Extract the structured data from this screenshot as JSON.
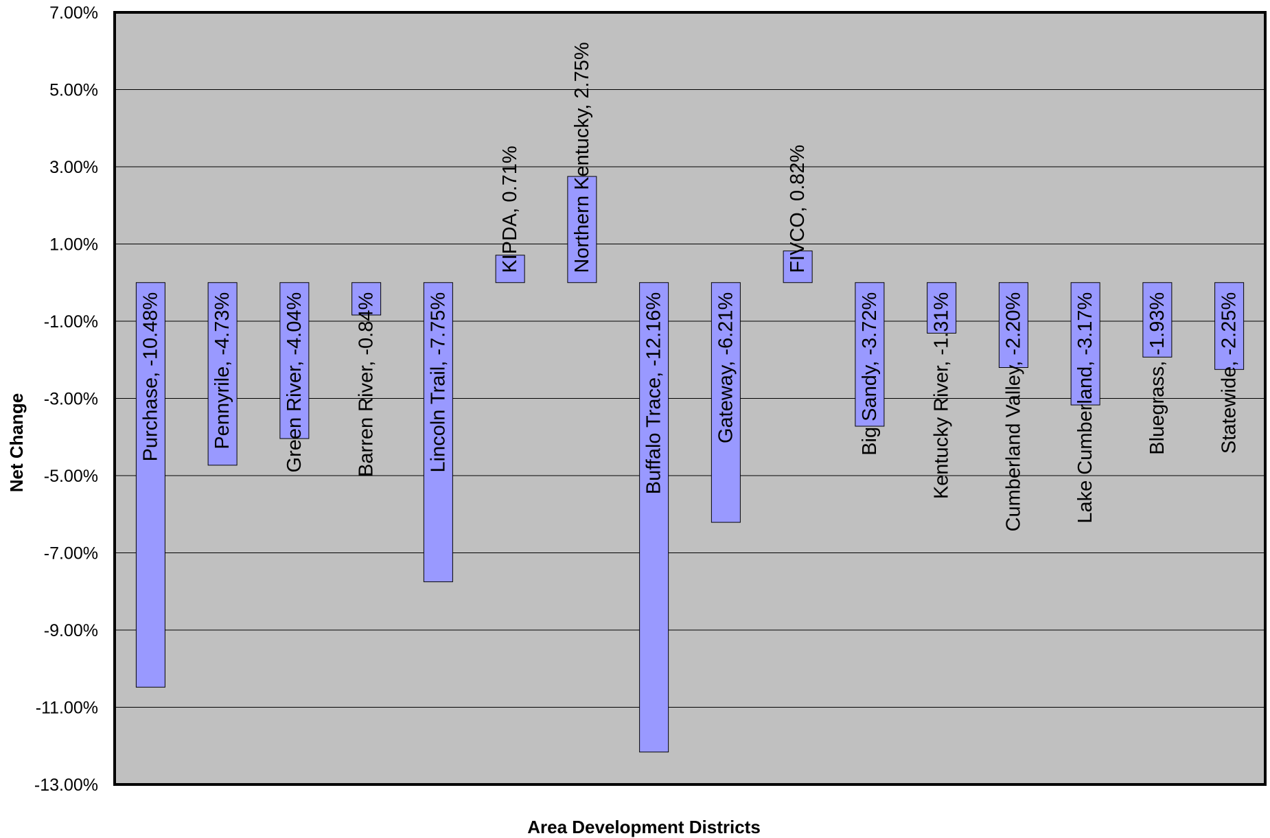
{
  "chart_data": {
    "type": "bar",
    "title": "",
    "xlabel": "Area Development Districts",
    "ylabel": "Net Change",
    "ylim": [
      -13,
      7
    ],
    "yticks": [
      7,
      5,
      3,
      1,
      -1,
      -3,
      -5,
      -7,
      -9,
      -11,
      -13
    ],
    "ytick_labels": [
      "7.00%",
      "5.00%",
      "3.00%",
      "1.00%",
      "-1.00%",
      "-3.00%",
      "-5.00%",
      "-7.00%",
      "-9.00%",
      "-11.00%",
      "-13.00%"
    ],
    "grid": true,
    "categories": [
      "Purchase",
      "Pennyrile",
      "Green River",
      "Barren River",
      "Lincoln Trail",
      "KIPDA",
      "Northern Kentucky",
      "Buffalo Trace",
      "Gateway",
      "FIVCO",
      "Big Sandy",
      "Kentucky River",
      "Cumberland Valley",
      "Lake Cumberland",
      "Bluegrass",
      "Statewide"
    ],
    "values": [
      -10.48,
      -4.73,
      -4.04,
      -0.84,
      -7.75,
      0.71,
      2.75,
      -12.16,
      -6.21,
      0.82,
      -3.72,
      -1.31,
      -2.2,
      -3.17,
      -1.93,
      -2.25
    ],
    "data_labels": [
      "Purchase, -10.48%",
      "Pennyrile, -4.73%",
      "Green River, -4.04%",
      "Barren River, -0.84%",
      "Lincoln Trail, -7.75%",
      "KIPDA, 0.71%",
      "Northern Kentucky, 2.75%",
      "Buffalo Trace, -12.16%",
      "Gateway, -6.21%",
      "FIVCO, 0.82%",
      "Big Sandy, -3.72%",
      "Kentucky River, -1.31%",
      "Cumberland Valley, -2.20%",
      "Lake Cumberland, -3.17%",
      "Bluegrass, -1.93%",
      "Statewide, -2.25%"
    ],
    "colors": {
      "bar": "#9999ff",
      "plot_background": "#c0c0c0",
      "gridline": "#000000"
    }
  }
}
